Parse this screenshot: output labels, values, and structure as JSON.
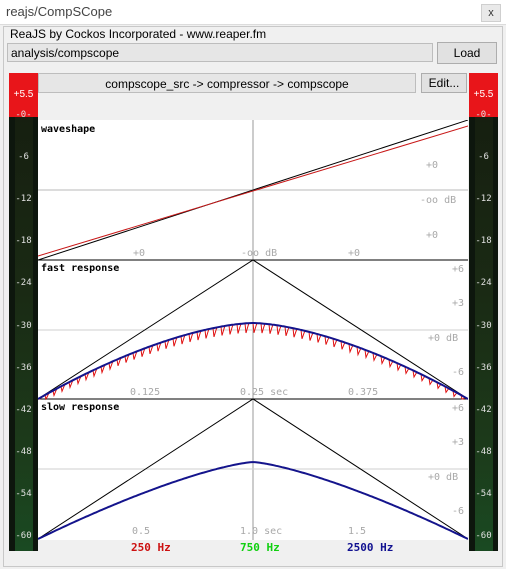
{
  "window": {
    "title": "reajs/CompSCope",
    "close_label": "x"
  },
  "group": {
    "label": "ReaJS by Cockos Incorporated - www.reaper.fm"
  },
  "path": {
    "value": "analysis/compscope"
  },
  "load_label": "Load",
  "chain": {
    "value": "compscope_src -> compressor -> compscope"
  },
  "edit_label": "Edit...",
  "meter": {
    "peak": "+5.5",
    "ticks": [
      "-0-",
      "-6",
      "-12",
      "-18",
      "-24",
      "-30",
      "-36",
      "-42",
      "-48",
      "-54",
      "-60"
    ]
  },
  "panels": {
    "waveshape": {
      "title": "waveshape",
      "xlabels": [
        "+0",
        "-oo dB",
        "+0"
      ],
      "ylabels": [
        "+0",
        "-oo dB",
        "+0"
      ]
    },
    "fast": {
      "title": "fast response",
      "xlabels": [
        "0.125",
        "0.25 sec",
        "0.375"
      ],
      "ylabels": [
        "+6",
        "+3",
        "+0 dB",
        "-6"
      ]
    },
    "slow": {
      "title": "slow response",
      "xlabels": [
        "0.5",
        "1.0 sec",
        "1.5"
      ],
      "ylabels": [
        "+6",
        "+3",
        "+0 dB",
        "-6"
      ]
    }
  },
  "legend": [
    {
      "label": "250 Hz",
      "color": "#cc1010"
    },
    {
      "label": "750 Hz",
      "color": "#10d010"
    },
    {
      "label": "2500 Hz",
      "color": "#101090"
    }
  ]
}
